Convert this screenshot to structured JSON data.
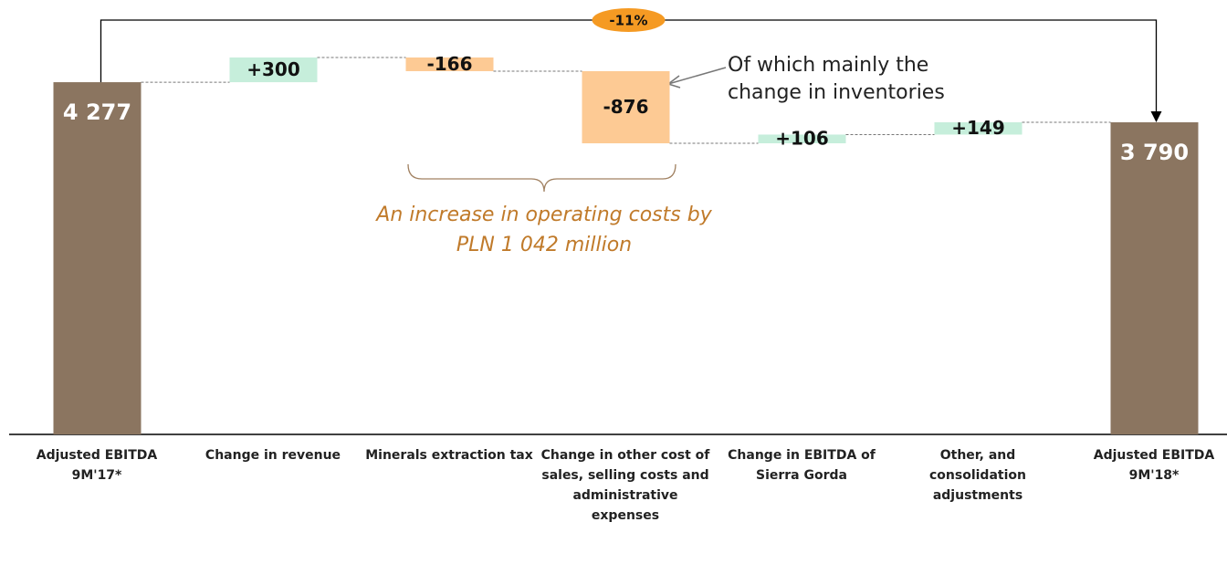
{
  "chart_data": {
    "type": "waterfall",
    "categories": [
      "Adjusted EBITDA 9M'17*",
      "Change in revenue",
      "Minerals extraction tax",
      "Change in other cost of sales, selling costs and administrative expenses",
      "Change in EBITDA of Sierra Gorda",
      "Other, and consolidation adjustments",
      "Adjusted EBITDA 9M'18*"
    ],
    "values": [
      4277,
      300,
      -166,
      -876,
      106,
      149,
      3790
    ],
    "value_labels": [
      "4 277",
      "+300",
      "-166",
      "-876",
      "+106",
      "+149",
      "3 790"
    ],
    "totals": [
      true,
      false,
      false,
      false,
      false,
      false,
      true
    ],
    "colors": {
      "total": "#8b7560",
      "increase": "#c6eedb",
      "decrease": "#fdca94"
    },
    "annotations": {
      "change": "-11%",
      "callout": [
        "Of which mainly the",
        "change in inventories"
      ],
      "brace": [
        "An increase in operating costs by",
        "PLN 1 042 million"
      ]
    }
  }
}
